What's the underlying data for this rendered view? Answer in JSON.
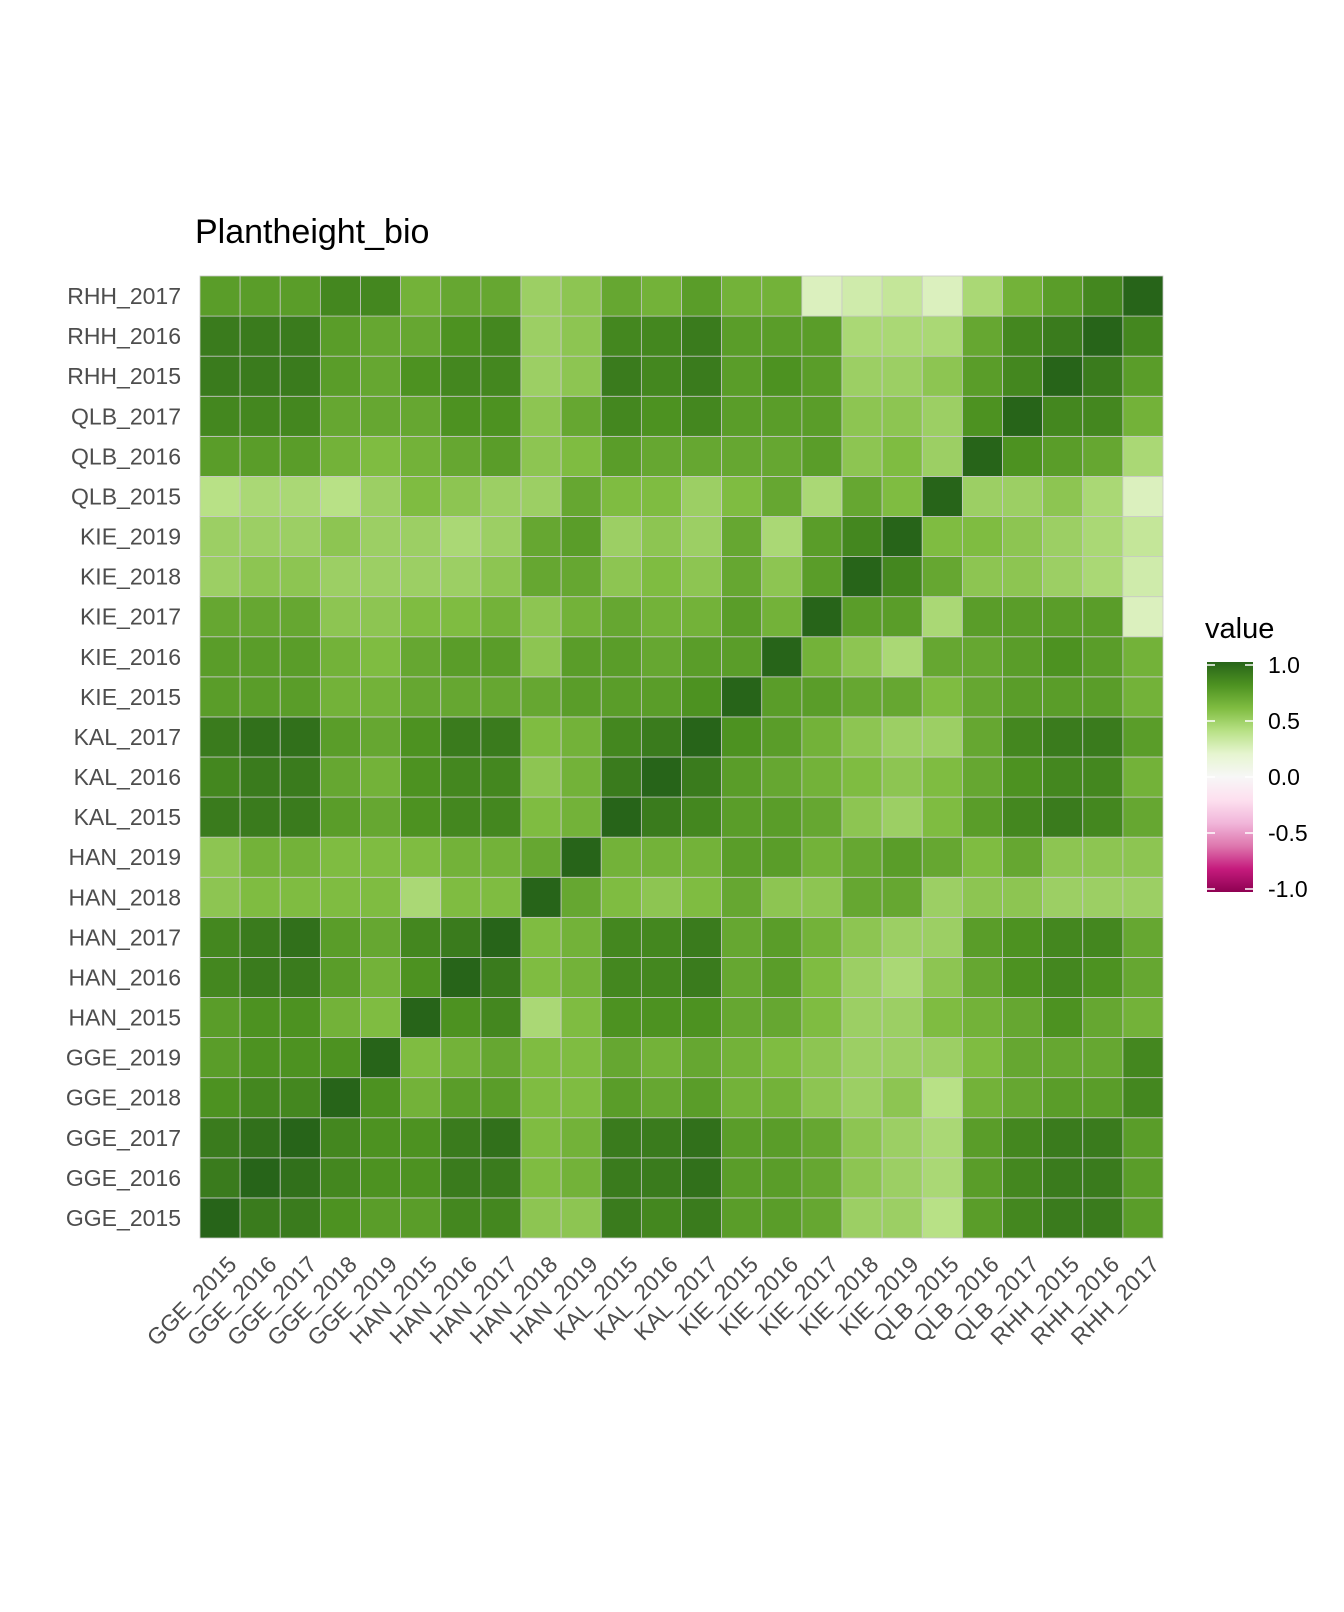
{
  "chart_data": {
    "type": "heatmap",
    "title": "Plantheight_bio",
    "xlabel": "",
    "ylabel": "",
    "categories": [
      "GGE_2015",
      "GGE_2016",
      "GGE_2017",
      "GGE_2018",
      "GGE_2019",
      "HAN_2015",
      "HAN_2016",
      "HAN_2017",
      "HAN_2018",
      "HAN_2019",
      "KAL_2015",
      "KAL_2016",
      "KAL_2017",
      "KIE_2015",
      "KIE_2016",
      "KIE_2017",
      "KIE_2018",
      "KIE_2019",
      "QLB_2015",
      "QLB_2016",
      "QLB_2017",
      "RHH_2015",
      "RHH_2016",
      "RHH_2017"
    ],
    "matrix": [
      [
        1.0,
        0.9,
        0.9,
        0.8,
        0.75,
        0.75,
        0.85,
        0.85,
        0.55,
        0.55,
        0.9,
        0.85,
        0.9,
        0.75,
        0.75,
        0.7,
        0.5,
        0.5,
        0.4,
        0.75,
        0.85,
        0.9,
        0.9,
        0.75
      ],
      [
        0.9,
        1.0,
        0.95,
        0.85,
        0.8,
        0.8,
        0.9,
        0.9,
        0.6,
        0.65,
        0.9,
        0.9,
        0.95,
        0.75,
        0.75,
        0.7,
        0.55,
        0.5,
        0.45,
        0.75,
        0.85,
        0.9,
        0.9,
        0.75
      ],
      [
        0.9,
        0.95,
        1.0,
        0.85,
        0.8,
        0.8,
        0.9,
        0.95,
        0.6,
        0.65,
        0.9,
        0.9,
        0.95,
        0.75,
        0.75,
        0.7,
        0.55,
        0.5,
        0.45,
        0.75,
        0.85,
        0.9,
        0.9,
        0.75
      ],
      [
        0.8,
        0.85,
        0.85,
        1.0,
        0.8,
        0.65,
        0.75,
        0.75,
        0.6,
        0.6,
        0.75,
        0.7,
        0.75,
        0.65,
        0.65,
        0.55,
        0.5,
        0.55,
        0.4,
        0.65,
        0.7,
        0.75,
        0.75,
        0.85
      ],
      [
        0.75,
        0.8,
        0.8,
        0.8,
        1.0,
        0.6,
        0.65,
        0.7,
        0.6,
        0.6,
        0.7,
        0.65,
        0.7,
        0.65,
        0.6,
        0.55,
        0.5,
        0.5,
        0.5,
        0.6,
        0.7,
        0.7,
        0.7,
        0.85
      ],
      [
        0.75,
        0.8,
        0.8,
        0.65,
        0.6,
        1.0,
        0.8,
        0.85,
        0.45,
        0.6,
        0.8,
        0.8,
        0.8,
        0.7,
        0.7,
        0.6,
        0.5,
        0.5,
        0.6,
        0.65,
        0.7,
        0.8,
        0.7,
        0.65
      ],
      [
        0.85,
        0.9,
        0.9,
        0.75,
        0.65,
        0.8,
        1.0,
        0.9,
        0.6,
        0.65,
        0.85,
        0.85,
        0.9,
        0.7,
        0.75,
        0.6,
        0.5,
        0.45,
        0.55,
        0.7,
        0.8,
        0.85,
        0.8,
        0.7
      ],
      [
        0.85,
        0.9,
        0.95,
        0.75,
        0.7,
        0.85,
        0.9,
        1.0,
        0.6,
        0.65,
        0.85,
        0.85,
        0.9,
        0.7,
        0.75,
        0.65,
        0.55,
        0.5,
        0.5,
        0.75,
        0.8,
        0.85,
        0.85,
        0.7
      ],
      [
        0.55,
        0.6,
        0.6,
        0.6,
        0.6,
        0.45,
        0.6,
        0.6,
        1.0,
        0.7,
        0.6,
        0.55,
        0.6,
        0.7,
        0.55,
        0.55,
        0.7,
        0.7,
        0.5,
        0.55,
        0.55,
        0.5,
        0.5,
        0.5
      ],
      [
        0.55,
        0.65,
        0.65,
        0.6,
        0.6,
        0.6,
        0.65,
        0.65,
        0.7,
        1.0,
        0.65,
        0.65,
        0.65,
        0.75,
        0.75,
        0.65,
        0.7,
        0.75,
        0.7,
        0.6,
        0.7,
        0.55,
        0.55,
        0.55
      ],
      [
        0.9,
        0.9,
        0.9,
        0.75,
        0.7,
        0.8,
        0.85,
        0.85,
        0.6,
        0.65,
        1.0,
        0.9,
        0.85,
        0.75,
        0.75,
        0.7,
        0.55,
        0.5,
        0.6,
        0.75,
        0.85,
        0.9,
        0.85,
        0.7
      ],
      [
        0.85,
        0.9,
        0.9,
        0.7,
        0.65,
        0.8,
        0.85,
        0.85,
        0.55,
        0.65,
        0.9,
        1.0,
        0.9,
        0.75,
        0.7,
        0.65,
        0.6,
        0.55,
        0.6,
        0.7,
        0.8,
        0.85,
        0.85,
        0.65
      ],
      [
        0.9,
        0.95,
        0.95,
        0.75,
        0.7,
        0.8,
        0.9,
        0.9,
        0.6,
        0.65,
        0.85,
        0.9,
        1.0,
        0.8,
        0.75,
        0.65,
        0.55,
        0.5,
        0.5,
        0.7,
        0.85,
        0.9,
        0.9,
        0.75
      ],
      [
        0.75,
        0.75,
        0.75,
        0.65,
        0.65,
        0.7,
        0.7,
        0.7,
        0.7,
        0.75,
        0.75,
        0.75,
        0.8,
        1.0,
        0.75,
        0.75,
        0.7,
        0.7,
        0.6,
        0.7,
        0.75,
        0.75,
        0.75,
        0.65
      ],
      [
        0.75,
        0.75,
        0.75,
        0.65,
        0.6,
        0.7,
        0.75,
        0.75,
        0.55,
        0.75,
        0.75,
        0.7,
        0.75,
        0.75,
        1.0,
        0.65,
        0.55,
        0.45,
        0.7,
        0.7,
        0.75,
        0.8,
        0.75,
        0.65
      ],
      [
        0.7,
        0.7,
        0.7,
        0.55,
        0.55,
        0.6,
        0.6,
        0.65,
        0.55,
        0.65,
        0.7,
        0.65,
        0.65,
        0.75,
        0.65,
        1.0,
        0.75,
        0.75,
        0.45,
        0.75,
        0.75,
        0.75,
        0.75,
        0.25
      ],
      [
        0.5,
        0.55,
        0.55,
        0.5,
        0.5,
        0.5,
        0.5,
        0.55,
        0.7,
        0.7,
        0.55,
        0.6,
        0.55,
        0.7,
        0.55,
        0.75,
        1.0,
        0.85,
        0.7,
        0.55,
        0.55,
        0.5,
        0.45,
        0.3
      ],
      [
        0.5,
        0.5,
        0.5,
        0.55,
        0.5,
        0.5,
        0.45,
        0.5,
        0.7,
        0.75,
        0.5,
        0.55,
        0.5,
        0.7,
        0.45,
        0.75,
        0.85,
        1.0,
        0.6,
        0.6,
        0.55,
        0.5,
        0.45,
        0.35
      ],
      [
        0.4,
        0.45,
        0.45,
        0.4,
        0.5,
        0.6,
        0.55,
        0.5,
        0.5,
        0.7,
        0.6,
        0.6,
        0.5,
        0.6,
        0.7,
        0.45,
        0.7,
        0.6,
        1.0,
        0.5,
        0.5,
        0.55,
        0.45,
        0.25
      ],
      [
        0.75,
        0.75,
        0.75,
        0.65,
        0.6,
        0.65,
        0.7,
        0.75,
        0.55,
        0.6,
        0.75,
        0.7,
        0.7,
        0.7,
        0.7,
        0.75,
        0.55,
        0.6,
        0.5,
        1.0,
        0.8,
        0.75,
        0.7,
        0.45
      ],
      [
        0.85,
        0.85,
        0.85,
        0.7,
        0.7,
        0.7,
        0.8,
        0.8,
        0.55,
        0.7,
        0.85,
        0.8,
        0.85,
        0.75,
        0.75,
        0.75,
        0.55,
        0.55,
        0.5,
        0.8,
        1.0,
        0.85,
        0.85,
        0.65
      ],
      [
        0.9,
        0.9,
        0.9,
        0.75,
        0.7,
        0.8,
        0.85,
        0.85,
        0.5,
        0.55,
        0.9,
        0.85,
        0.9,
        0.75,
        0.8,
        0.75,
        0.5,
        0.5,
        0.55,
        0.75,
        0.85,
        1.0,
        0.9,
        0.75
      ],
      [
        0.9,
        0.9,
        0.9,
        0.75,
        0.7,
        0.7,
        0.8,
        0.85,
        0.5,
        0.55,
        0.85,
        0.85,
        0.9,
        0.75,
        0.75,
        0.75,
        0.45,
        0.45,
        0.45,
        0.7,
        0.85,
        0.9,
        1.0,
        0.85
      ],
      [
        0.75,
        0.75,
        0.75,
        0.85,
        0.85,
        0.65,
        0.7,
        0.7,
        0.5,
        0.55,
        0.7,
        0.65,
        0.75,
        0.65,
        0.65,
        0.25,
        0.3,
        0.35,
        0.25,
        0.45,
        0.65,
        0.75,
        0.85,
        1.0
      ]
    ],
    "legend": {
      "title": "value",
      "labels": [
        "1.0",
        "0.5",
        "0.0",
        "-0.5",
        "-1.0"
      ],
      "values": [
        1.0,
        0.5,
        0.0,
        -0.5,
        -1.0
      ],
      "placement": "right"
    },
    "scale": {
      "min": -1.0,
      "max": 1.0,
      "colors": [
        "#8e0152",
        "#c51b7d",
        "#de77ae",
        "#f1b6da",
        "#fde0ef",
        "#f7f7f7",
        "#e6f5d0",
        "#b8e186",
        "#7fbc41",
        "#4d9221",
        "#276419"
      ],
      "tile_border": "#c8c8c8"
    }
  }
}
